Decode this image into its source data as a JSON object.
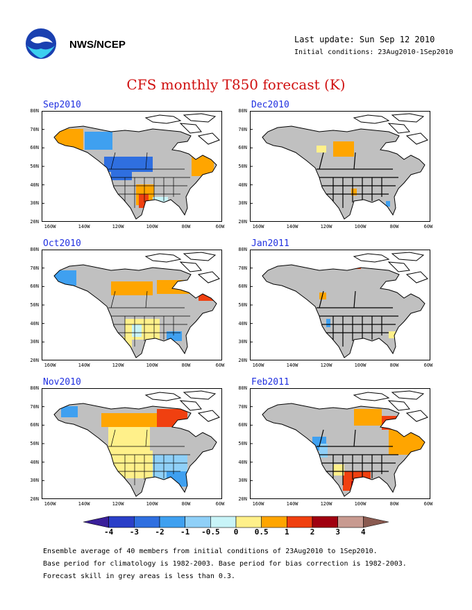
{
  "header": {
    "org": "NWS/NCEP",
    "last_update": "Last update: Sun Sep 12 2010",
    "initial_conditions": "Initial conditions: 23Aug2010-1Sep2010",
    "logo_icon": "noaa-logo-icon"
  },
  "title": "CFS monthly T850 forecast (K)",
  "axes": {
    "lat_ticks": [
      "80N",
      "70N",
      "60N",
      "50N",
      "40N",
      "30N",
      "20N"
    ],
    "lon_ticks": [
      "160W",
      "140W",
      "120W",
      "100W",
      "80W",
      "60W"
    ]
  },
  "panels": [
    {
      "label": "Sep2010"
    },
    {
      "label": "Dec2010"
    },
    {
      "label": "Oct2010"
    },
    {
      "label": "Jan2011"
    },
    {
      "label": "Nov2010"
    },
    {
      "label": "Feb2011"
    }
  ],
  "colorbar": {
    "labels": [
      "-4",
      "-3",
      "-2",
      "-1",
      "-0.5",
      "0",
      "0.5",
      "1",
      "2",
      "3",
      "4"
    ],
    "colors": [
      "#3a1f9a",
      "#2a3fc8",
      "#2f6fe0",
      "#3fa0f0",
      "#8fd0f8",
      "#c8f4f8",
      "#fff08a",
      "#ffa500",
      "#f04010",
      "#a00010",
      "#c89a90",
      "#8a5a50"
    ]
  },
  "footer": [
    "Ensemble average of 40 members from initial conditions of 23Aug2010 to 1Sep2010.",
    "Base period for climatology is 1982-2003. Base period for bias correction is 1982-2003.",
    "Forecast skill in grey areas is less than 0.3."
  ],
  "map_colors": {
    "skill_grey": "#c0c0c0",
    "ocean": "#ffffff",
    "border": "#000000"
  }
}
